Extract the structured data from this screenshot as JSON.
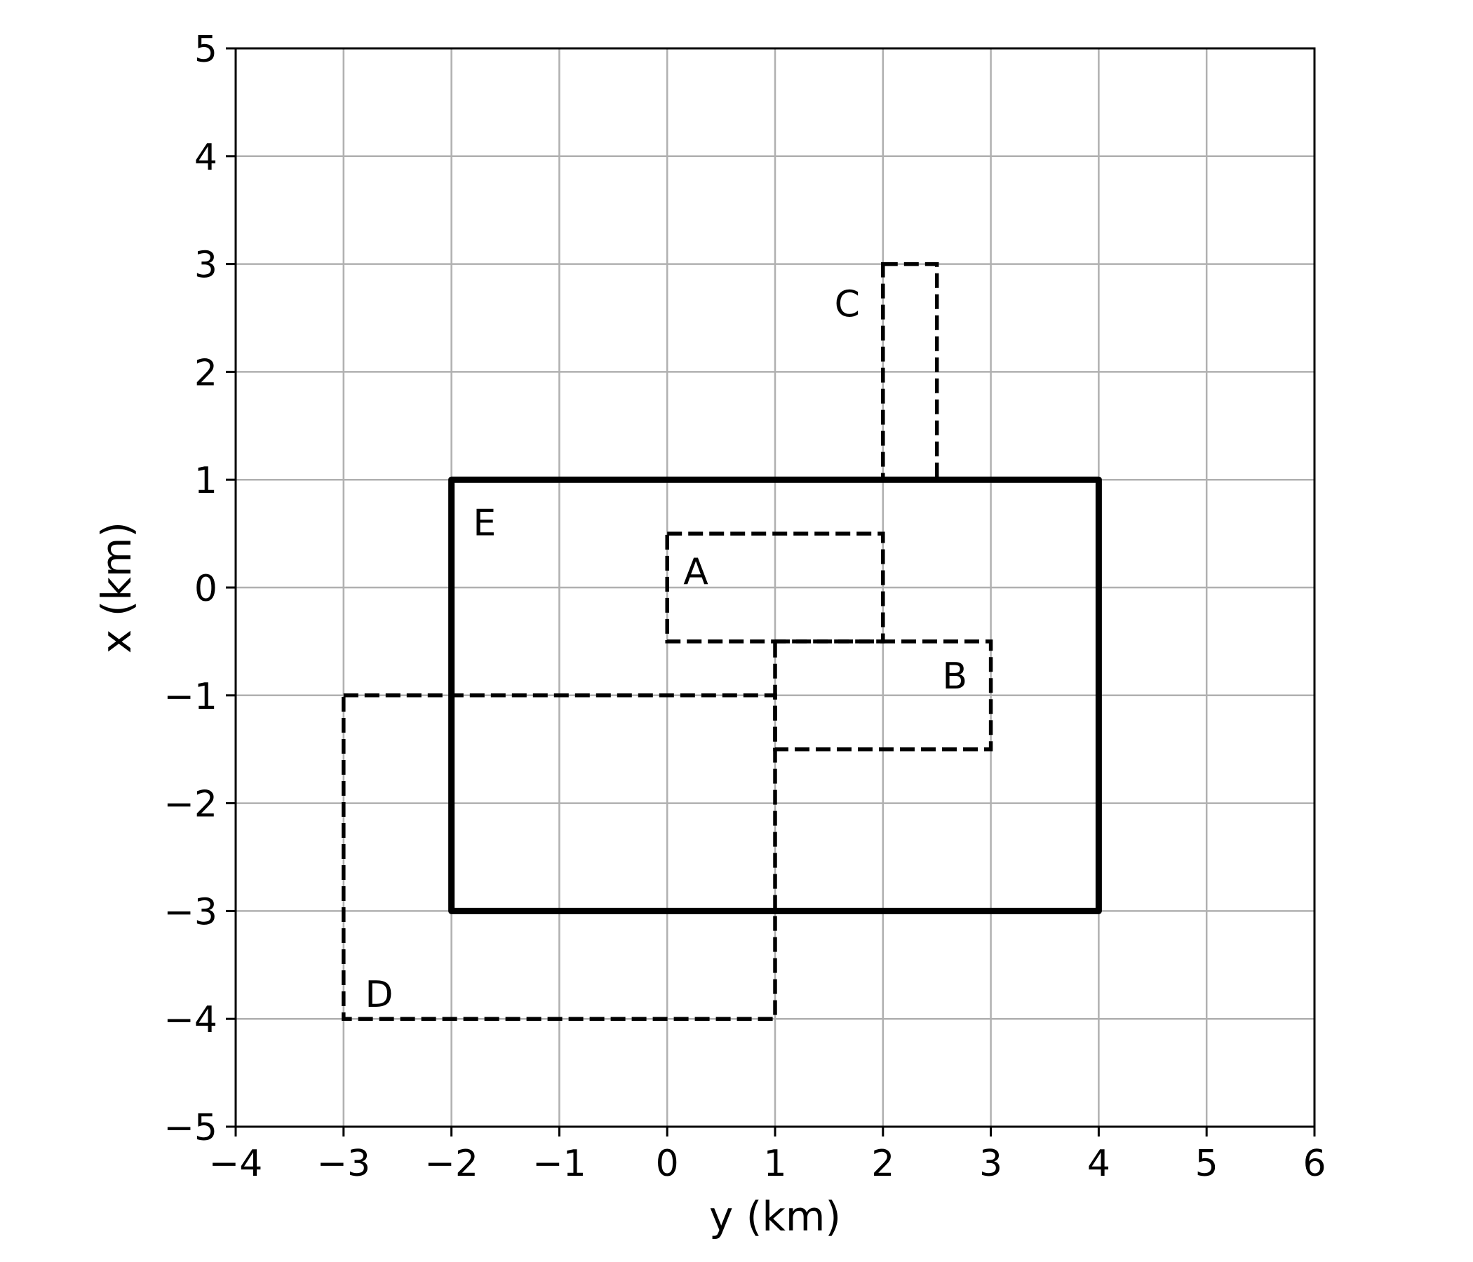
{
  "chart_data": {
    "type": "rectangles",
    "xlabel": "y (km)",
    "ylabel": "x (km)",
    "xlim": [
      -4,
      6
    ],
    "ylim": [
      -5,
      5
    ],
    "x_ticks": [
      -4,
      -3,
      -2,
      -1,
      0,
      1,
      2,
      3,
      4,
      5,
      6
    ],
    "y_ticks": [
      -5,
      -4,
      -3,
      -2,
      -1,
      0,
      1,
      2,
      3,
      4,
      5
    ],
    "grid": true,
    "rectangles": [
      {
        "label": "E",
        "style": "solid",
        "x_range": [
          -2,
          4
        ],
        "y_range": [
          -3,
          1
        ]
      },
      {
        "label": "A",
        "style": "dashed",
        "x_range": [
          0,
          2
        ],
        "y_range": [
          -0.5,
          0.5
        ]
      },
      {
        "label": "B",
        "style": "dashed",
        "x_range": [
          1,
          3
        ],
        "y_range": [
          -1.5,
          -0.5
        ]
      },
      {
        "label": "C",
        "style": "dashed",
        "x_range": [
          2,
          2.5
        ],
        "y_range": [
          1,
          3
        ]
      },
      {
        "label": "D",
        "style": "dashed",
        "x_range": [
          -3,
          1
        ],
        "y_range": [
          -4,
          -1
        ]
      }
    ],
    "colors": {
      "frame": "#000000",
      "grid": "#b0b0b0",
      "shapes": "#000000"
    }
  }
}
